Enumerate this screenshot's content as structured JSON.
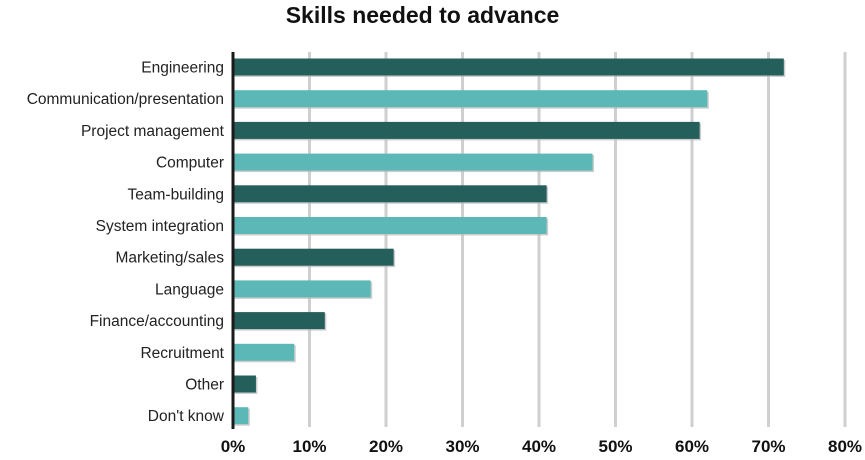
{
  "chart_data": {
    "type": "bar",
    "orientation": "horizontal",
    "title": "Skills needed to advance",
    "xlabel": "",
    "ylabel": "",
    "categories": [
      "Engineering",
      "Communication/presentation",
      "Project management",
      "Computer",
      "Team-building",
      "System integration",
      "Marketing/sales",
      "Language",
      "Finance/accounting",
      "Recruitment",
      "Other",
      "Don't know"
    ],
    "values": [
      72,
      62,
      61,
      47,
      41,
      41,
      21,
      18,
      12,
      8,
      3,
      2
    ],
    "xlim": [
      0,
      80
    ],
    "xticks": [
      "0%",
      "10%",
      "20%",
      "30%",
      "40%",
      "50%",
      "60%",
      "70%",
      "80%"
    ],
    "grid": "vertical",
    "legend": "none",
    "colors": [
      "#245f5b",
      "#5cb8b6"
    ]
  }
}
